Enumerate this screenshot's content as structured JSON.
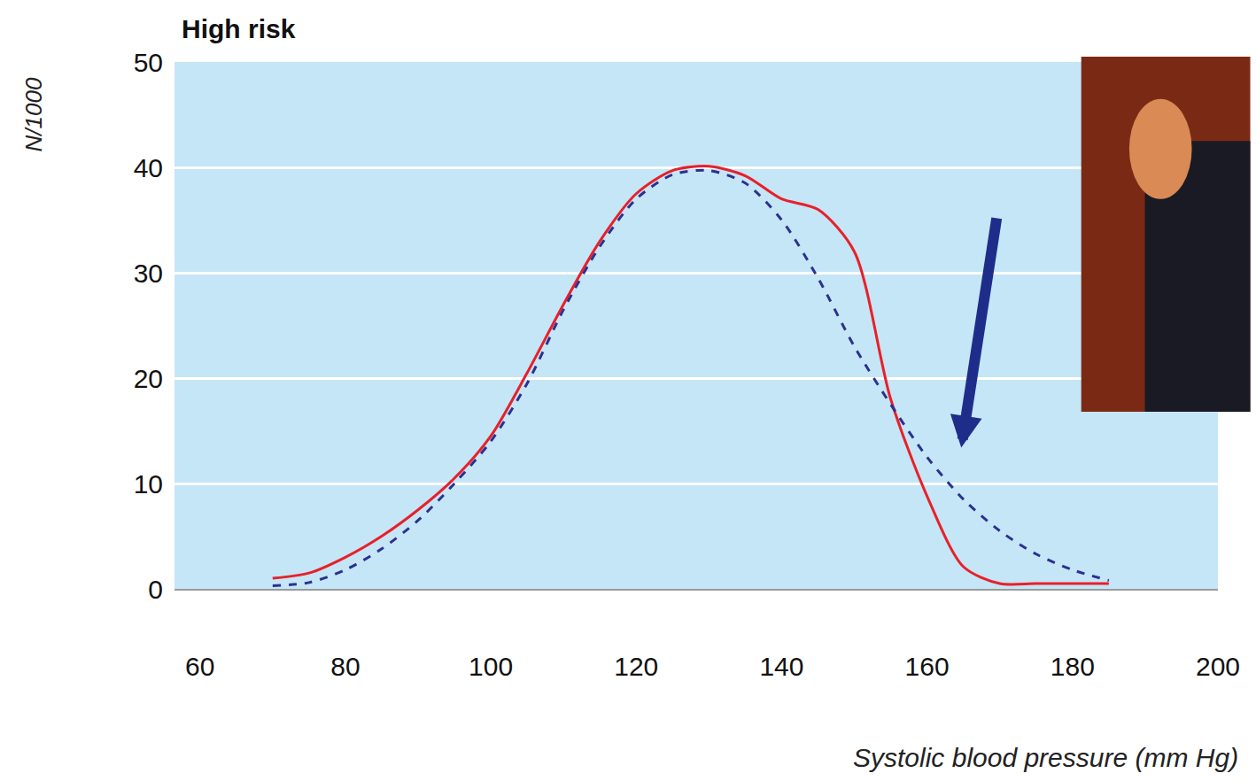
{
  "chart_data": {
    "type": "line",
    "title": "High risk",
    "x_label": "Systolic blood pressure (mm Hg)",
    "y_label": "N/1000",
    "x": [
      70,
      75,
      80,
      85,
      90,
      95,
      100,
      105,
      110,
      115,
      120,
      125,
      130,
      135,
      140,
      145,
      150,
      155,
      160,
      165,
      170,
      175,
      180,
      185
    ],
    "series": [
      {
        "color": "#e8202a",
        "line_style": "solid",
        "values": [
          1.0,
          1.5,
          3.0,
          5.0,
          7.5,
          10.5,
          14.5,
          20.5,
          27,
          33,
          37.5,
          39.7,
          40.1,
          39.2,
          37,
          36,
          32,
          18,
          8.8,
          2.1,
          0.5,
          0.5,
          0.5,
          0.5
        ]
      },
      {
        "color": "#2b3190",
        "line_style": "dash",
        "values": [
          0.3,
          0.6,
          1.8,
          3.8,
          6.5,
          10,
          14,
          19.5,
          26.5,
          32.5,
          37,
          39.3,
          39.7,
          38.5,
          35,
          29.5,
          23,
          17.5,
          12.5,
          8.5,
          5.5,
          3.3,
          1.8,
          0.8
        ]
      }
    ],
    "xlim": [
      56.5,
      200
    ],
    "xticks": [
      60,
      80,
      100,
      120,
      140,
      160,
      180,
      200
    ],
    "ylim": [
      0,
      50
    ],
    "yticks": [
      0,
      10,
      20,
      30,
      40,
      50
    ],
    "grid": true
  }
}
